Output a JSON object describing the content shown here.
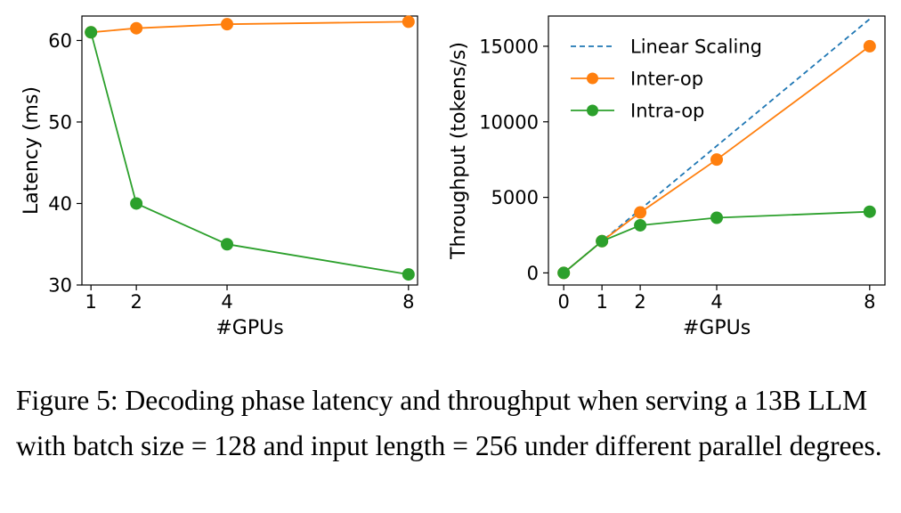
{
  "chart_data": [
    {
      "type": "line",
      "title": "",
      "xlabel": "#GPUs",
      "ylabel": "Latency (ms)",
      "x": [
        1,
        2,
        4,
        8
      ],
      "xlim": [
        0.8,
        8.2
      ],
      "ylim": [
        30,
        63
      ],
      "xticks": [
        1,
        2,
        4,
        8
      ],
      "yticks": [
        30,
        40,
        50,
        60
      ],
      "grid": false,
      "series": [
        {
          "name": "Inter-op",
          "color": "#ff7f0e",
          "marker": "circle",
          "values": [
            61.0,
            61.5,
            62.0,
            62.3
          ]
        },
        {
          "name": "Intra-op",
          "color": "#2ca02c",
          "marker": "circle",
          "values": [
            61.0,
            40.0,
            35.0,
            31.3
          ]
        }
      ]
    },
    {
      "type": "line",
      "title": "",
      "xlabel": "#GPUs",
      "ylabel": "Throughput (tokens/s)",
      "xlim": [
        -0.4,
        8.4
      ],
      "ylim": [
        -800,
        17000
      ],
      "xticks": [
        0,
        1,
        2,
        4,
        8
      ],
      "yticks": [
        0,
        5000,
        10000,
        15000
      ],
      "grid": false,
      "legend": "top-left",
      "series": [
        {
          "name": "Linear Scaling",
          "color": "#1f77b4",
          "style": "dashed",
          "x": [
            0,
            8
          ],
          "values": [
            0,
            16800
          ]
        },
        {
          "name": "Inter-op",
          "color": "#ff7f0e",
          "marker": "circle",
          "x": [
            0,
            1,
            2,
            4,
            8
          ],
          "values": [
            0,
            2100,
            4000,
            7500,
            15000
          ]
        },
        {
          "name": "Intra-op",
          "color": "#2ca02c",
          "marker": "circle",
          "x": [
            0,
            1,
            2,
            4,
            8
          ],
          "values": [
            0,
            2100,
            3150,
            3650,
            4050
          ]
        }
      ]
    }
  ],
  "caption": "Figure 5: Decoding phase latency and throughput when serving a 13B LLM with batch size = 128 and input length = 256 under different parallel degrees."
}
